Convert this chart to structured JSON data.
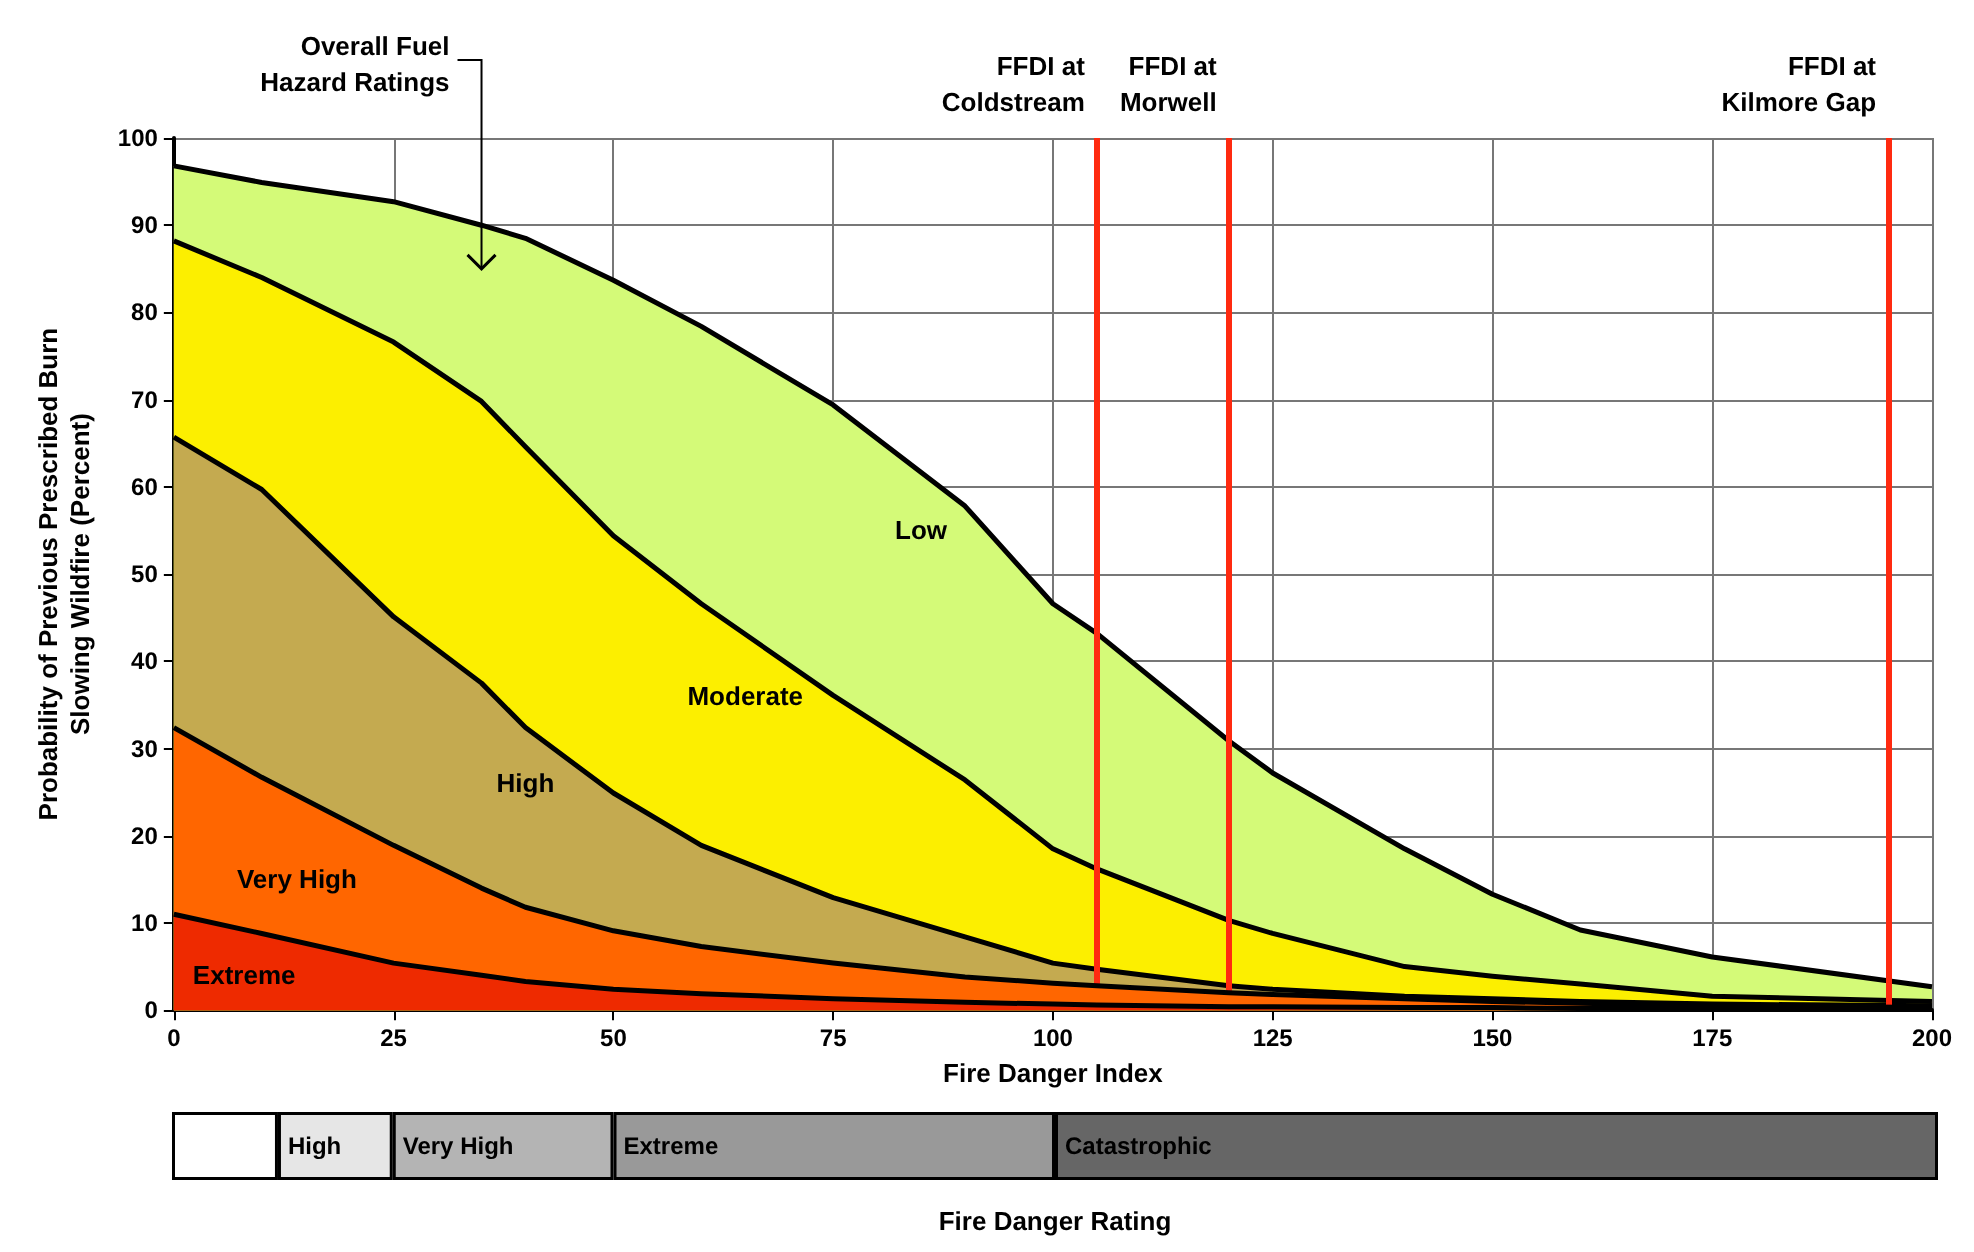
{
  "chart_data": [
    {
      "type": "area",
      "xlabel": "Fire Danger Index",
      "ylabel": "Probability of Previous Prescribed Burn\nSlowing Wildfire (Percent)",
      "x": [
        0,
        10,
        25,
        35,
        40,
        50,
        60,
        75,
        90,
        100,
        105,
        120,
        125,
        140,
        150,
        160,
        175,
        200
      ],
      "series": [
        {
          "name": "Low",
          "color": "#d4fa78",
          "values": [
            96.8,
            94.9,
            92.7,
            90,
            88.5,
            83.7,
            78.4,
            69.4,
            57.8,
            46.6,
            43.2,
            30.9,
            27.2,
            18.5,
            13.3,
            9.2,
            6.1,
            2.7
          ]
        },
        {
          "name": "Moderate",
          "color": "#fcef00",
          "values": [
            88.2,
            84,
            76.6,
            69.8,
            64.6,
            54.4,
            46.6,
            36.1,
            26.4,
            18.5,
            16.2,
            10.3,
            8.8,
            5,
            3.9,
            3,
            1.6,
            1
          ]
        },
        {
          "name": "High",
          "color": "#c4aa50",
          "values": [
            65.7,
            59.7,
            45.1,
            37.5,
            32.4,
            24.9,
            18.9,
            12.9,
            8.4,
            5.4,
            4.7,
            2.8,
            2.4,
            1.6,
            1.3,
            1,
            0.7,
            0.5
          ]
        },
        {
          "name": "Very High",
          "color": "#ff6600",
          "values": [
            32.4,
            26.7,
            18.9,
            14,
            11.8,
            9.1,
            7.3,
            5.4,
            3.8,
            3.1,
            2.8,
            2,
            1.8,
            1.3,
            1,
            0.8,
            0.5,
            0.3
          ]
        },
        {
          "name": "Extreme",
          "color": "#ee2a00",
          "values": [
            11,
            8.8,
            5.4,
            4,
            3.3,
            2.4,
            1.9,
            1.3,
            0.9,
            0.7,
            0.6,
            0.4,
            0.4,
            0.3,
            0.3,
            0.2,
            0.2,
            0.1
          ]
        }
      ],
      "xlim": [
        0,
        200
      ],
      "xticks": [
        0,
        25,
        50,
        75,
        100,
        125,
        150,
        175,
        200
      ],
      "ylim": [
        0,
        100
      ],
      "yticks": [
        0,
        10,
        20,
        30,
        40,
        50,
        60,
        70,
        80,
        90,
        100
      ],
      "grid": true,
      "ref_lines": [
        {
          "axis": "x",
          "value": 105,
          "label": "FFDI at\nColdstream",
          "color": "#ff2a10"
        },
        {
          "axis": "x",
          "value": 120,
          "label": "FFDI at\nMorwell",
          "color": "#ff2a10"
        },
        {
          "axis": "x",
          "value": 195,
          "label": "FFDI at\nKilmore Gap",
          "color": "#ff2a10"
        }
      ],
      "annotations": [
        "Overall Fuel\nHazard Ratings"
      ]
    },
    {
      "type": "bar",
      "orientation": "horizontal",
      "stacked": true,
      "categories": [
        null
      ],
      "xlabel": "Fire Danger Rating",
      "series": [
        {
          "color": "#ffffff",
          "values": [
            12
          ]
        },
        {
          "name": "High",
          "color": "#e6e6e6",
          "values": [
            13
          ]
        },
        {
          "name": "Very High",
          "color": "#b4b4b4",
          "values": [
            25
          ]
        },
        {
          "name": "Extreme",
          "color": "#999999",
          "values": [
            50
          ]
        },
        {
          "name": "Catastrophic",
          "color": "#666666",
          "values": [
            100
          ]
        }
      ],
      "xlim": [
        0,
        200
      ]
    }
  ]
}
